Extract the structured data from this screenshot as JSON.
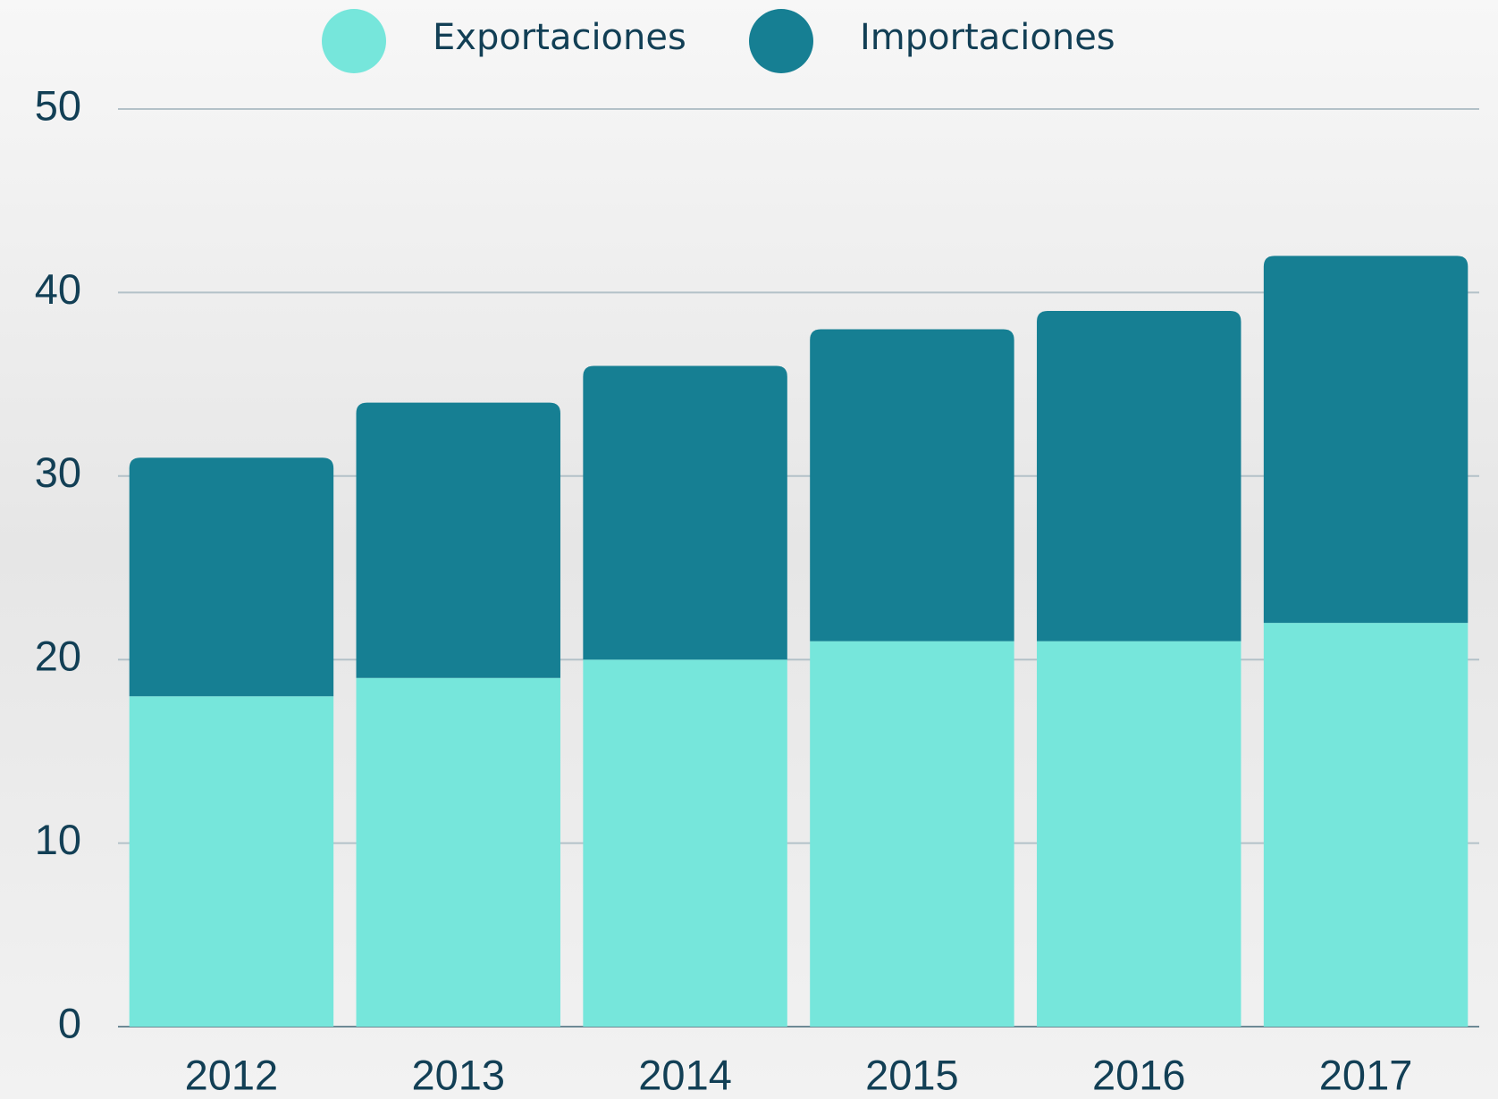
{
  "chart_data": {
    "type": "stacked-bar",
    "categories": [
      "2012",
      "2013",
      "2014",
      "2015",
      "2016",
      "2017"
    ],
    "series": [
      {
        "name": "Exportaciones",
        "color": "#76e6db",
        "values": [
          18,
          19,
          20,
          21,
          21,
          22
        ]
      },
      {
        "name": "Importaciones",
        "color": "#167f93",
        "values": [
          13,
          15,
          16,
          17,
          18,
          20
        ]
      }
    ],
    "ylim": [
      0,
      50
    ],
    "yticks": [
      0,
      10,
      20,
      30,
      40,
      50
    ],
    "grid": true
  }
}
